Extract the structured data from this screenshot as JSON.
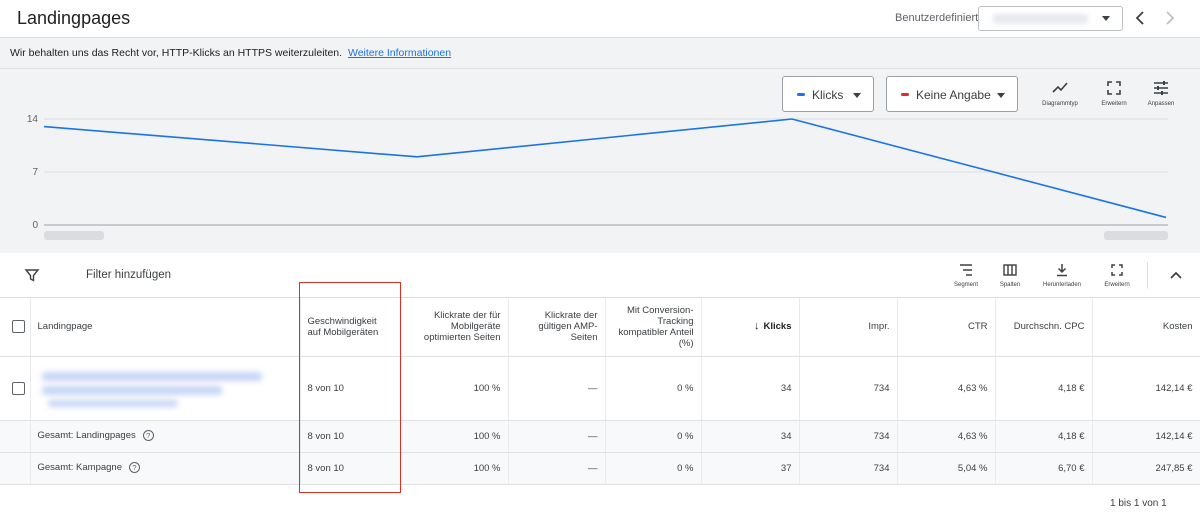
{
  "header": {
    "title": "Landingpages",
    "daterange_label": "Benutzerdefiniert",
    "daterange_value": ""
  },
  "notice": {
    "text": "Wir behalten uns das Recht vor, HTTP-Klicks an HTTPS weiterzuleiten.",
    "link": "Weitere Informationen"
  },
  "chart": {
    "metric1": {
      "label": "Klicks",
      "color": "#1a73e8"
    },
    "metric2": {
      "label": "Keine Angabe",
      "color": "#d93025"
    },
    "tools": {
      "type": "Diagrammtyp",
      "expand": "Erweitern",
      "adjust": "Anpassen"
    }
  },
  "chart_data": {
    "type": "line",
    "series": [
      {
        "name": "Klicks",
        "values": [
          13,
          9,
          14,
          1
        ]
      }
    ],
    "y_ticks": [
      "14",
      "7",
      "0"
    ],
    "ylim": [
      0,
      14
    ],
    "grid": true
  },
  "toolbar": {
    "filter_label": "Filter hinzufügen",
    "segment": "Segment",
    "columns": "Spalten",
    "download": "Herunterladen",
    "expand": "Erweitern"
  },
  "table": {
    "columns": {
      "landingpage": "Landingpage",
      "speed": "Geschwindigkeit auf Mobilgeräten",
      "mobile_ctr": "Klickrate der für Mobilgeräte optimierten Seiten",
      "amp_ctr": "Klickrate der gültigen AMP-Seiten",
      "conv": "Mit Conversion-Tracking kompatibler Anteil (%)",
      "clicks": "Klicks",
      "impr": "Impr.",
      "ctr": "CTR",
      "cpc": "Durchschn. CPC",
      "cost": "Kosten"
    },
    "row": {
      "speed": "8 von 10",
      "mobile_ctr": "100 %",
      "amp_ctr": "—",
      "conv": "0 %",
      "clicks": "34",
      "impr": "734",
      "ctr": "4,63 %",
      "cpc": "4,18 €",
      "cost": "142,14 €"
    },
    "total_landing": {
      "label": "Gesamt: Landingpages",
      "speed": "8 von 10",
      "mobile_ctr": "100 %",
      "amp_ctr": "—",
      "conv": "0 %",
      "clicks": "34",
      "impr": "734",
      "ctr": "4,63 %",
      "cpc": "4,18 €",
      "cost": "142,14 €"
    },
    "total_campaign": {
      "label": "Gesamt: Kampagne",
      "speed": "8 von 10",
      "mobile_ctr": "100 %",
      "amp_ctr": "—",
      "conv": "0 %",
      "clicks": "37",
      "impr": "734",
      "ctr": "5,04 %",
      "cpc": "6,70 €",
      "cost": "247,85 €"
    }
  },
  "pagination": "1 bis 1 von 1"
}
